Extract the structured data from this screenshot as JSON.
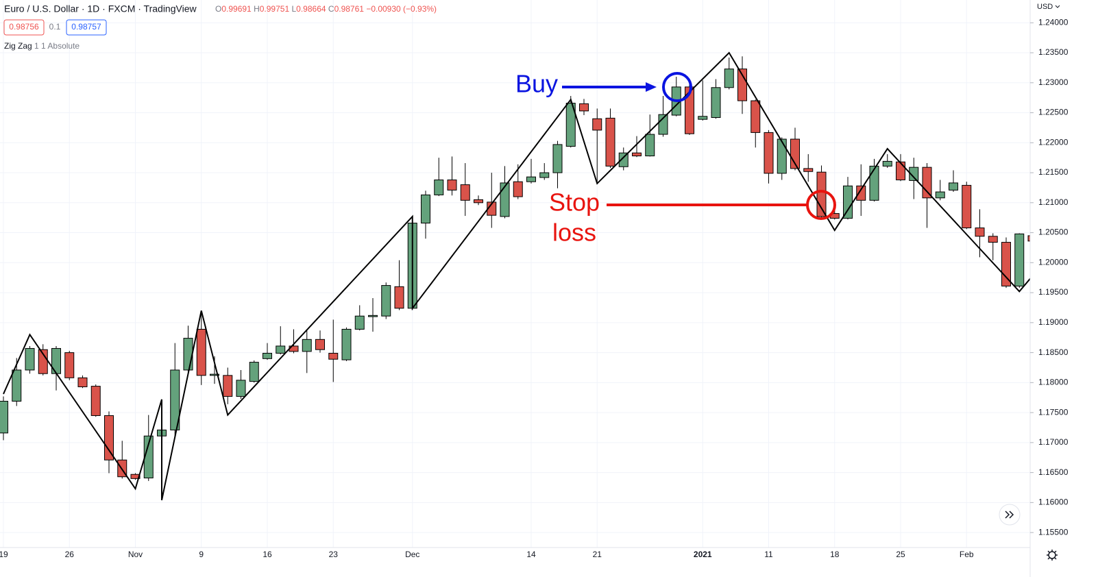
{
  "header": {
    "title": "Euro / U.S. Dollar · 1D · FXCM · TradingView",
    "ohlc": [
      {
        "label": "O",
        "value": "0.99691"
      },
      {
        "label": "H",
        "value": "0.99751"
      },
      {
        "label": "L",
        "value": "0.98664"
      },
      {
        "label": "C",
        "value": "0.98761"
      }
    ],
    "change": "−0.00930 (−0.93%)",
    "sell": "0.98756",
    "spread": "0.1",
    "buy": "0.98757",
    "indicator": {
      "name": "Zig Zag",
      "params": "1 1 Absolute"
    },
    "currency": "USD"
  },
  "chart_data": {
    "type": "candlestick",
    "categories": [
      "19",
      null,
      null,
      null,
      null,
      "26",
      null,
      null,
      null,
      null,
      "Nov",
      null,
      null,
      null,
      null,
      "9",
      null,
      null,
      null,
      null,
      "16",
      null,
      null,
      null,
      null,
      "23",
      null,
      null,
      null,
      null,
      null,
      "Dec",
      null,
      null,
      null,
      null,
      null,
      null,
      null,
      null,
      "14",
      null,
      null,
      null,
      null,
      "21",
      null,
      null,
      null,
      null,
      null,
      null,
      null,
      "2021",
      null,
      null,
      null,
      null,
      "11",
      null,
      null,
      null,
      null,
      "18",
      null,
      null,
      null,
      null,
      "25",
      null,
      null,
      null,
      null,
      "Feb",
      null,
      null,
      null,
      null,
      null
    ],
    "open": [
      1.1716,
      1.1769,
      1.1821,
      1.1855,
      1.1815,
      1.185,
      1.1808,
      1.1794,
      1.1745,
      1.1671,
      1.1647,
      1.1641,
      1.1711,
      1.1721,
      1.1821,
      1.1889,
      1.1812,
      1.1812,
      1.1777,
      1.1802,
      1.184,
      1.1849,
      1.1861,
      1.1852,
      1.1872,
      1.1849,
      1.1838,
      1.1889,
      1.191,
      1.1911,
      1.196,
      1.1924,
      1.2066,
      1.2113,
      1.2138,
      1.213,
      1.2105,
      1.2101,
      1.2077,
      1.2135,
      1.2135,
      1.2142,
      1.215,
      1.2194,
      1.2265,
      1.224,
      1.2241,
      1.216,
      1.2183,
      1.2178,
      1.2214,
      1.2246,
      1.2293,
      1.2239,
      1.2242,
      1.2292,
      1.2323,
      1.227,
      1.2217,
      1.2149,
      1.2206,
      1.2157,
      1.2151,
      1.2082,
      1.2074,
      1.2128,
      1.2104,
      1.2161,
      1.2168,
      1.2137,
      1.2159,
      1.2108,
      1.2121,
      1.2129,
      1.2058,
      1.2044,
      1.2034,
      1.1961,
      1.2045
    ],
    "high": [
      1.1777,
      1.1841,
      1.1861,
      1.1864,
      1.1861,
      1.1853,
      1.1812,
      1.1797,
      1.1752,
      1.1703,
      1.1649,
      1.1746,
      1.1735,
      1.1866,
      1.1895,
      1.1918,
      1.1844,
      1.1825,
      1.1821,
      1.1837,
      1.1866,
      1.1894,
      1.1889,
      1.1887,
      1.1887,
      1.1905,
      1.1892,
      1.1929,
      1.1941,
      1.1967,
      1.2004,
      1.2078,
      1.212,
      1.2175,
      1.2177,
      1.2166,
      1.2112,
      1.215,
      1.2161,
      1.2164,
      1.2173,
      1.2166,
      1.2203,
      1.2278,
      1.2273,
      1.2257,
      1.2257,
      1.2192,
      1.2211,
      1.2247,
      1.2278,
      1.231,
      1.2301,
      1.2304,
      1.2306,
      1.2342,
      1.2344,
      1.2272,
      1.2221,
      1.2209,
      1.2225,
      1.2181,
      1.2162,
      1.2095,
      1.2143,
      1.2164,
      1.2173,
      1.2181,
      1.2181,
      1.2175,
      1.2166,
      1.2138,
      1.2154,
      1.2135,
      1.2089,
      1.2049,
      1.2042,
      1.2049,
      1.2047
    ],
    "low": [
      1.1704,
      1.1761,
      1.1815,
      1.1812,
      1.1787,
      1.1804,
      1.1791,
      1.1743,
      1.1649,
      1.164,
      1.1638,
      1.1636,
      1.1706,
      1.1711,
      1.1815,
      1.1796,
      1.1798,
      1.1764,
      1.1773,
      1.18,
      1.1838,
      1.1847,
      1.1849,
      1.1816,
      1.185,
      1.1801,
      1.1836,
      1.1887,
      1.1885,
      1.1906,
      1.1921,
      1.1921,
      1.204,
      1.2111,
      1.2112,
      1.2078,
      1.2096,
      1.2058,
      1.2074,
      1.2106,
      1.2132,
      1.2138,
      1.2124,
      1.2192,
      1.2246,
      1.2132,
      1.2158,
      1.2154,
      1.2176,
      1.2177,
      1.221,
      1.2244,
      1.2213,
      1.2237,
      1.224,
      1.2289,
      1.2248,
      1.2192,
      1.2132,
      1.2138,
      1.2154,
      1.2135,
      1.2074,
      1.2072,
      1.2072,
      1.2078,
      1.2102,
      1.2158,
      1.2136,
      1.2106,
      1.2058,
      1.2104,
      1.2118,
      1.2056,
      1.2009,
      1.2004,
      1.1958,
      1.1958,
      1.2033
    ],
    "close": [
      1.1769,
      1.1821,
      1.1857,
      1.1815,
      1.1857,
      1.1808,
      1.1793,
      1.1745,
      1.1671,
      1.1643,
      1.164,
      1.1711,
      1.1721,
      1.1821,
      1.1874,
      1.1812,
      1.1814,
      1.1777,
      1.1804,
      1.1834,
      1.1849,
      1.1861,
      1.1852,
      1.1872,
      1.1855,
      1.1839,
      1.1889,
      1.1911,
      1.1912,
      1.1962,
      1.1924,
      1.2066,
      1.2113,
      1.2138,
      1.2121,
      1.2104,
      1.21,
      1.2079,
      1.2133,
      1.211,
      1.2143,
      1.215,
      1.2197,
      1.2266,
      1.2253,
      1.2221,
      1.2161,
      1.2183,
      1.2178,
      1.2214,
      1.2247,
      1.2293,
      1.2215,
      1.2244,
      1.2292,
      1.2323,
      1.227,
      1.2217,
      1.2149,
      1.2206,
      1.2157,
      1.2152,
      1.2077,
      1.2074,
      1.2128,
      1.2104,
      1.2161,
      1.2169,
      1.2138,
      1.2159,
      1.2108,
      1.2118,
      1.2133,
      1.2058,
      1.2044,
      1.2034,
      1.1961,
      1.2048,
      1.2036
    ],
    "up_color": "#64a27c",
    "down_color": "#d9534a",
    "zigzag": {
      "color": "#000000",
      "x": [
        0,
        2,
        10,
        12,
        12,
        15,
        17,
        31,
        31,
        43,
        45,
        55,
        63,
        67,
        77,
        78
      ],
      "values": [
        1.1781,
        1.188,
        1.1623,
        1.1772,
        1.1604,
        1.192,
        1.1746,
        1.2077,
        1.1924,
        1.2272,
        1.2132,
        1.235,
        1.2054,
        1.219,
        1.1952,
        1.1978
      ]
    },
    "ylim": [
      1.1525,
      1.2438
    ],
    "yticks": [
      {
        "value": 1.155,
        "label": "1.15500"
      },
      {
        "value": 1.16,
        "label": "1.16000"
      },
      {
        "value": 1.165,
        "label": "1.16500"
      },
      {
        "value": 1.17,
        "label": "1.17000"
      },
      {
        "value": 1.175,
        "label": "1.17500"
      },
      {
        "value": 1.18,
        "label": "1.18000"
      },
      {
        "value": 1.185,
        "label": "1.18500"
      },
      {
        "value": 1.19,
        "label": "1.19000"
      },
      {
        "value": 1.195,
        "label": "1.19500"
      },
      {
        "value": 1.2,
        "label": "1.20000"
      },
      {
        "value": 1.205,
        "label": "1.20500"
      },
      {
        "value": 1.21,
        "label": "1.21000"
      },
      {
        "value": 1.215,
        "label": "1.21500"
      },
      {
        "value": 1.22,
        "label": "1.22000"
      },
      {
        "value": 1.225,
        "label": "1.22500"
      },
      {
        "value": 1.23,
        "label": "1.23000"
      },
      {
        "value": 1.235,
        "label": "1.23500"
      },
      {
        "value": 1.24,
        "label": "1.24000"
      }
    ],
    "grid": true,
    "annotations": {
      "buy": {
        "text": "Buy",
        "color": "#0a14e0"
      },
      "stop": {
        "lines": [
          "Stop",
          "loss"
        ],
        "color": "#e8140f"
      }
    }
  }
}
